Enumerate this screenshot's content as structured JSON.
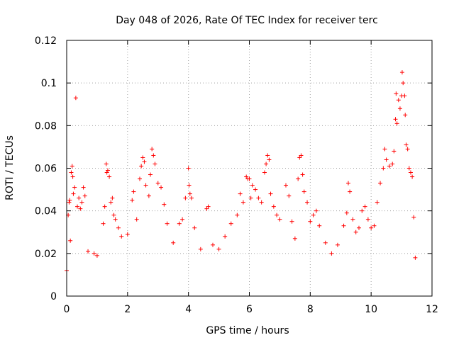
{
  "chart_data": {
    "type": "scatter",
    "title": "Day 048 of 2026, Rate Of TEC Index for receiver terc",
    "xlabel": "GPS time / hours",
    "ylabel": "ROTI / TECUs",
    "xlim": [
      0,
      12
    ],
    "ylim": [
      0,
      0.12
    ],
    "x_ticks": [
      0,
      2,
      4,
      6,
      8,
      10,
      12
    ],
    "x_tick_labels": [
      "0",
      "2",
      "4",
      "6",
      "8",
      "10",
      "12"
    ],
    "y_ticks": [
      0,
      0.02,
      0.04,
      0.06,
      0.08,
      0.1,
      0.12
    ],
    "y_tick_labels": [
      "0",
      "0.02",
      "0.04",
      "0.06",
      "0.08",
      "0.1",
      "0.12"
    ],
    "grid": true,
    "marker": "+",
    "marker_color": "#ff0000",
    "series": [
      {
        "name": "ROTI",
        "points": [
          [
            0.0,
            0.012
          ],
          [
            0.05,
            0.038
          ],
          [
            0.08,
            0.044
          ],
          [
            0.1,
            0.045
          ],
          [
            0.12,
            0.026
          ],
          [
            0.15,
            0.058
          ],
          [
            0.18,
            0.061
          ],
          [
            0.2,
            0.056
          ],
          [
            0.22,
            0.048
          ],
          [
            0.26,
            0.051
          ],
          [
            0.3,
            0.093
          ],
          [
            0.35,
            0.042
          ],
          [
            0.4,
            0.046
          ],
          [
            0.45,
            0.041
          ],
          [
            0.5,
            0.044
          ],
          [
            0.55,
            0.051
          ],
          [
            0.6,
            0.047
          ],
          [
            0.7,
            0.021
          ],
          [
            0.9,
            0.02
          ],
          [
            1.0,
            0.019
          ],
          [
            1.2,
            0.034
          ],
          [
            1.25,
            0.042
          ],
          [
            1.3,
            0.062
          ],
          [
            1.32,
            0.058
          ],
          [
            1.35,
            0.059
          ],
          [
            1.4,
            0.056
          ],
          [
            1.45,
            0.044
          ],
          [
            1.5,
            0.046
          ],
          [
            1.55,
            0.038
          ],
          [
            1.6,
            0.036
          ],
          [
            1.7,
            0.032
          ],
          [
            1.8,
            0.028
          ],
          [
            2.0,
            0.029
          ],
          [
            2.15,
            0.045
          ],
          [
            2.2,
            0.049
          ],
          [
            2.3,
            0.036
          ],
          [
            2.4,
            0.055
          ],
          [
            2.45,
            0.061
          ],
          [
            2.5,
            0.065
          ],
          [
            2.55,
            0.063
          ],
          [
            2.6,
            0.052
          ],
          [
            2.7,
            0.047
          ],
          [
            2.75,
            0.057
          ],
          [
            2.8,
            0.069
          ],
          [
            2.85,
            0.066
          ],
          [
            2.9,
            0.062
          ],
          [
            3.0,
            0.053
          ],
          [
            3.1,
            0.051
          ],
          [
            3.2,
            0.043
          ],
          [
            3.3,
            0.034
          ],
          [
            3.5,
            0.025
          ],
          [
            3.7,
            0.034
          ],
          [
            3.8,
            0.036
          ],
          [
            3.9,
            0.046
          ],
          [
            4.0,
            0.06
          ],
          [
            4.02,
            0.052
          ],
          [
            4.05,
            0.048
          ],
          [
            4.1,
            0.046
          ],
          [
            4.2,
            0.032
          ],
          [
            4.4,
            0.022
          ],
          [
            4.6,
            0.041
          ],
          [
            4.65,
            0.042
          ],
          [
            4.8,
            0.024
          ],
          [
            5.0,
            0.022
          ],
          [
            5.2,
            0.028
          ],
          [
            5.4,
            0.034
          ],
          [
            5.6,
            0.038
          ],
          [
            5.7,
            0.048
          ],
          [
            5.8,
            0.044
          ],
          [
            5.9,
            0.056
          ],
          [
            5.95,
            0.055
          ],
          [
            6.0,
            0.055
          ],
          [
            6.05,
            0.046
          ],
          [
            6.1,
            0.052
          ],
          [
            6.2,
            0.05
          ],
          [
            6.3,
            0.046
          ],
          [
            6.4,
            0.044
          ],
          [
            6.5,
            0.058
          ],
          [
            6.55,
            0.062
          ],
          [
            6.6,
            0.066
          ],
          [
            6.65,
            0.064
          ],
          [
            6.7,
            0.048
          ],
          [
            6.8,
            0.042
          ],
          [
            6.9,
            0.038
          ],
          [
            7.0,
            0.036
          ],
          [
            7.2,
            0.052
          ],
          [
            7.3,
            0.047
          ],
          [
            7.4,
            0.035
          ],
          [
            7.5,
            0.027
          ],
          [
            7.6,
            0.055
          ],
          [
            7.65,
            0.065
          ],
          [
            7.7,
            0.066
          ],
          [
            7.75,
            0.057
          ],
          [
            7.8,
            0.049
          ],
          [
            7.9,
            0.044
          ],
          [
            8.0,
            0.035
          ],
          [
            8.1,
            0.038
          ],
          [
            8.2,
            0.04
          ],
          [
            8.3,
            0.033
          ],
          [
            8.5,
            0.025
          ],
          [
            8.7,
            0.02
          ],
          [
            8.9,
            0.024
          ],
          [
            9.1,
            0.033
          ],
          [
            9.2,
            0.039
          ],
          [
            9.25,
            0.053
          ],
          [
            9.3,
            0.049
          ],
          [
            9.4,
            0.036
          ],
          [
            9.5,
            0.03
          ],
          [
            9.6,
            0.032
          ],
          [
            9.7,
            0.04
          ],
          [
            9.8,
            0.042
          ],
          [
            9.9,
            0.036
          ],
          [
            10.0,
            0.032
          ],
          [
            10.1,
            0.033
          ],
          [
            10.2,
            0.044
          ],
          [
            10.3,
            0.053
          ],
          [
            10.4,
            0.06
          ],
          [
            10.45,
            0.069
          ],
          [
            10.5,
            0.064
          ],
          [
            10.6,
            0.061
          ],
          [
            10.7,
            0.062
          ],
          [
            10.75,
            0.068
          ],
          [
            10.8,
            0.083
          ],
          [
            10.82,
            0.095
          ],
          [
            10.85,
            0.081
          ],
          [
            10.9,
            0.092
          ],
          [
            10.95,
            0.088
          ],
          [
            11.0,
            0.094
          ],
          [
            11.02,
            0.105
          ],
          [
            11.05,
            0.1
          ],
          [
            11.1,
            0.094
          ],
          [
            11.12,
            0.085
          ],
          [
            11.15,
            0.071
          ],
          [
            11.2,
            0.069
          ],
          [
            11.25,
            0.06
          ],
          [
            11.3,
            0.058
          ],
          [
            11.35,
            0.056
          ],
          [
            11.4,
            0.037
          ],
          [
            11.45,
            0.018
          ]
        ]
      }
    ]
  }
}
